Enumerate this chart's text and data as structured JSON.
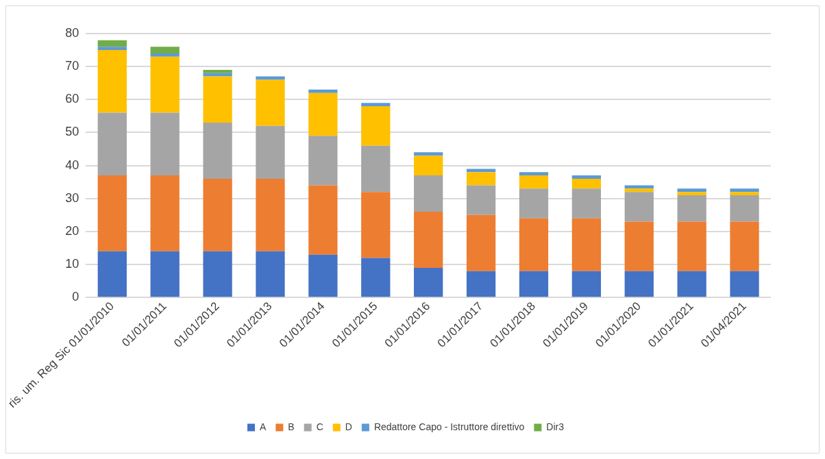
{
  "chart_data": {
    "type": "bar",
    "stacked": true,
    "categories": [
      "ris. um. Reg Sic 01/01/2010",
      "01/01/2011",
      "01/01/2012",
      "01/01/2013",
      "01/01/2014",
      "01/01/2015",
      "01/01/2016",
      "01/01/2017",
      "01/01/2018",
      "01/01/2019",
      "01/01/2020",
      "01/01/2021",
      "01/04/2021"
    ],
    "series": [
      {
        "name": "A",
        "color": "#4472c4",
        "values": [
          14,
          14,
          14,
          14,
          13,
          12,
          9,
          8,
          8,
          8,
          8,
          8,
          8
        ]
      },
      {
        "name": "B",
        "color": "#ed7d31",
        "values": [
          23,
          23,
          22,
          22,
          21,
          20,
          17,
          17,
          16,
          16,
          15,
          15,
          15
        ]
      },
      {
        "name": "C",
        "color": "#a5a5a5",
        "values": [
          19,
          19,
          17,
          16,
          15,
          14,
          11,
          9,
          9,
          9,
          9,
          8,
          8
        ]
      },
      {
        "name": "D",
        "color": "#ffc000",
        "values": [
          19,
          17,
          14,
          14,
          13,
          12,
          6,
          4,
          4,
          3,
          1,
          1,
          1
        ]
      },
      {
        "name": "Redattore Capo - Istruttore direttivo",
        "color": "#5b9bd5",
        "values": [
          1,
          1,
          1,
          1,
          1,
          1,
          1,
          1,
          1,
          1,
          1,
          1,
          1
        ]
      },
      {
        "name": "Dir3",
        "color": "#70ad47",
        "values": [
          2,
          2,
          1,
          0,
          0,
          0,
          0,
          0,
          0,
          0,
          0,
          0,
          0
        ]
      }
    ],
    "ylim": [
      0,
      80
    ],
    "yticks": [
      0,
      10,
      20,
      30,
      40,
      50,
      60,
      70,
      80
    ],
    "grid": "y",
    "legend": "bottom"
  }
}
